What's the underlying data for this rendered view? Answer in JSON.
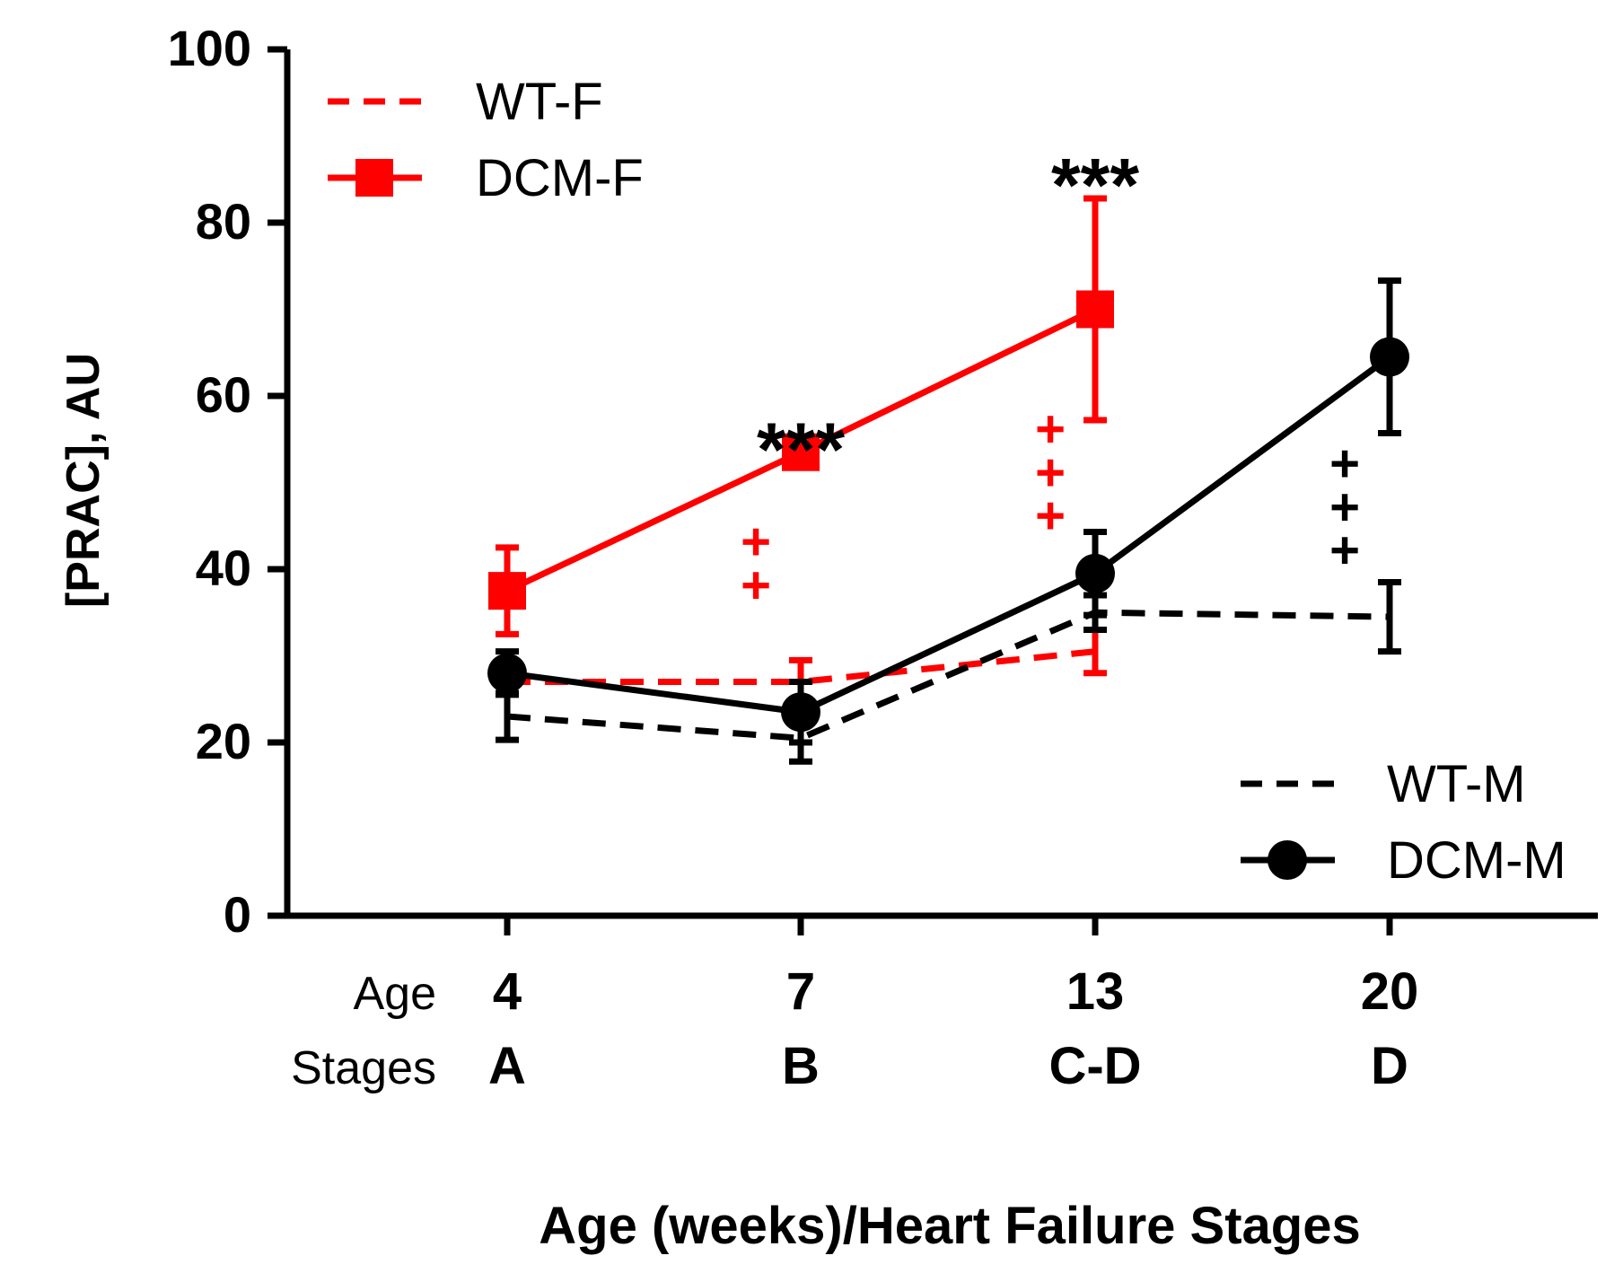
{
  "chart_data": {
    "type": "line",
    "ylabel": "[PRAC], AU",
    "xlabel": "Age (weeks)/Heart Failure Stages",
    "ylim": [
      0,
      100
    ],
    "yticks": [
      "0",
      "20",
      "40",
      "60",
      "80",
      "100"
    ],
    "row_labels": {
      "age": "Age",
      "stages": "Stages"
    },
    "categories": [
      "4",
      "7",
      "13",
      "20"
    ],
    "stages": [
      "A",
      "B",
      "C-D",
      "D"
    ],
    "series": [
      {
        "name": "WT-F",
        "color": "#ff0000",
        "dashed": true,
        "marker": "none",
        "x": [
          4,
          7,
          13
        ],
        "values": [
          27,
          27,
          30.5
        ],
        "errors": [
          null,
          2.5,
          2.5
        ]
      },
      {
        "name": "DCM-F",
        "color": "#ff0000",
        "dashed": false,
        "marker": "square",
        "x": [
          4,
          7,
          13
        ],
        "values": [
          37.5,
          53.5,
          70
        ],
        "errors": [
          5,
          null,
          12.8
        ]
      },
      {
        "name": "WT-M",
        "color": "#000000",
        "dashed": true,
        "marker": "none",
        "x": [
          4,
          7,
          13,
          20
        ],
        "values": [
          23,
          20.5,
          35,
          34.5
        ],
        "errors": [
          2.7,
          2.7,
          2,
          4
        ]
      },
      {
        "name": "DCM-M",
        "color": "#000000",
        "dashed": false,
        "marker": "circle",
        "x": [
          4,
          7,
          13,
          20
        ],
        "values": [
          28,
          23.5,
          39.5,
          64.5
        ],
        "errors": [
          2.5,
          3.5,
          4.8,
          8.8
        ]
      }
    ],
    "annotations": [
      {
        "text": "***",
        "category": "7",
        "y": 55,
        "color": "#000000"
      },
      {
        "text": "***",
        "category": "13",
        "y": 85.5,
        "color": "#000000"
      },
      {
        "text": "++",
        "category": "7",
        "y": [
          43,
          38
        ],
        "color": "#ff0000"
      },
      {
        "text": "+++",
        "category": "13",
        "y": [
          56,
          51,
          46
        ],
        "color": "#ff0000"
      },
      {
        "text": "+++",
        "category": "20",
        "y": [
          52,
          47,
          42
        ],
        "color": "#000000"
      }
    ],
    "legend": [
      {
        "position": "top-left",
        "entries": [
          "WT-F",
          "DCM-F"
        ]
      },
      {
        "position": "bottom-right",
        "entries": [
          "WT-M",
          "DCM-M"
        ]
      }
    ]
  }
}
